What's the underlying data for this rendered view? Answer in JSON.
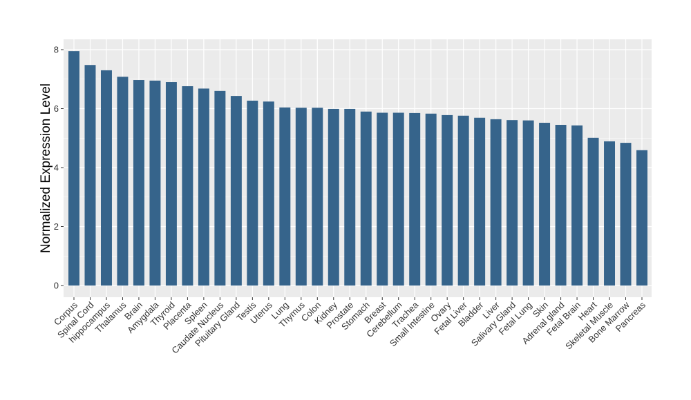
{
  "chart_data": {
    "type": "bar",
    "title": "",
    "xlabel": "",
    "ylabel": "Normalized Expression Level",
    "ylim": [
      0,
      8
    ],
    "yticks": [
      0,
      2,
      4,
      6,
      8
    ],
    "grid": true,
    "colors": {
      "bar": "#36648b",
      "panel": "#ebebeb",
      "grid": "#ffffff"
    },
    "categories": [
      "Corpus",
      "Spinal Cord",
      "hippocampus",
      "Thalamus",
      "Brain",
      "Amygdala",
      "Thyroid",
      "Placenta",
      "Spleen",
      "Caudate Nucleus",
      "Pituitary Gland",
      "Testis",
      "Uterus",
      "Lung",
      "Thymus",
      "Colon",
      "Kidney",
      "Prostate",
      "Stomach",
      "Breast",
      "Cerebellum",
      "Trachea",
      "Small Intestine",
      "Ovary",
      "Fetal Liver",
      "Bladder",
      "Liver",
      "Salivary Gland",
      "Fetal Lung",
      "Skin",
      "Adrenal gland",
      "Fetal Brain",
      "Heart",
      "Skeletal Muscle",
      "Bone Marrow",
      "Pancreas"
    ],
    "values": [
      7.95,
      7.48,
      7.3,
      7.08,
      6.97,
      6.95,
      6.9,
      6.76,
      6.68,
      6.6,
      6.43,
      6.27,
      6.24,
      6.04,
      6.03,
      6.03,
      5.99,
      5.99,
      5.9,
      5.86,
      5.86,
      5.85,
      5.83,
      5.78,
      5.76,
      5.69,
      5.64,
      5.61,
      5.6,
      5.52,
      5.45,
      5.43,
      5.01,
      4.89,
      4.84,
      4.59
    ]
  }
}
